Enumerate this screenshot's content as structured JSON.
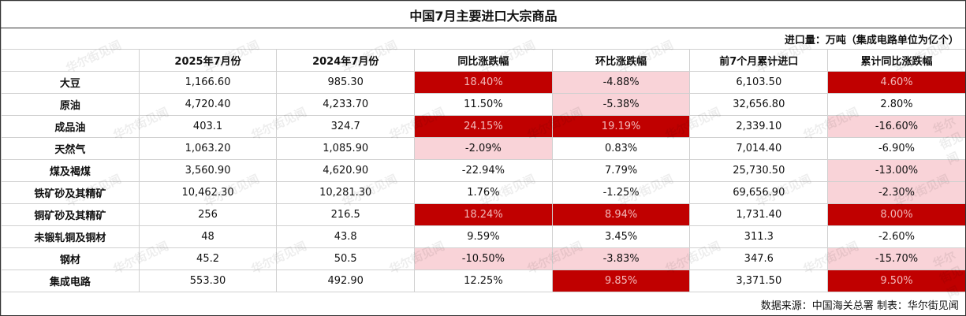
{
  "title": "中国7月主要进口大宗商品",
  "unit_note": "进口量：万吨（集成电路单位为亿个）",
  "headers": [
    "",
    "2025年7月份",
    "2024年7月份",
    "同比涨跌幅",
    "环比涨跌幅",
    "前7个月累计进口",
    "累计同比涨跌幅"
  ],
  "shade_colors": {
    "dark": {
      "background": "#c00000",
      "text": "#f2b8b8"
    },
    "light": {
      "background": "#f9d3d8",
      "text": "#111111"
    }
  },
  "rows": [
    {
      "label": "大豆",
      "cells": [
        "1,166.60",
        "985.30",
        "18.40%",
        "-4.88%",
        "6,103.50",
        "4.60%"
      ],
      "shade": [
        null,
        null,
        "dark",
        "light",
        null,
        "dark"
      ]
    },
    {
      "label": "原油",
      "cells": [
        "4,720.40",
        "4,233.70",
        "11.50%",
        "-5.38%",
        "32,656.80",
        "2.80%"
      ],
      "shade": [
        null,
        null,
        null,
        "light",
        null,
        null
      ]
    },
    {
      "label": "成品油",
      "cells": [
        "403.1",
        "324.7",
        "24.15%",
        "19.19%",
        "2,339.10",
        "-16.60%"
      ],
      "shade": [
        null,
        null,
        "dark",
        "dark",
        null,
        "light"
      ]
    },
    {
      "label": "天然气",
      "cells": [
        "1,063.20",
        "1,085.90",
        "-2.09%",
        "0.83%",
        "7,014.40",
        "-6.90%"
      ],
      "shade": [
        null,
        null,
        "light",
        null,
        null,
        null
      ]
    },
    {
      "label": "煤及褐煤",
      "cells": [
        "3,560.90",
        "4,620.90",
        "-22.94%",
        "7.79%",
        "25,730.50",
        "-13.00%"
      ],
      "shade": [
        null,
        null,
        null,
        null,
        null,
        "light"
      ]
    },
    {
      "label": "铁矿砂及其精矿",
      "cells": [
        "10,462.30",
        "10,281.30",
        "1.76%",
        "-1.25%",
        "69,656.90",
        "-2.30%"
      ],
      "shade": [
        null,
        null,
        null,
        null,
        null,
        "light"
      ]
    },
    {
      "label": "铜矿砂及其精矿",
      "cells": [
        "256",
        "216.5",
        "18.24%",
        "8.94%",
        "1,731.40",
        "8.00%"
      ],
      "shade": [
        null,
        null,
        "dark",
        "dark",
        null,
        "dark"
      ]
    },
    {
      "label": "未锻轧铜及铜材",
      "cells": [
        "48",
        "43.8",
        "9.59%",
        "3.45%",
        "311.3",
        "-2.60%"
      ],
      "shade": [
        null,
        null,
        null,
        null,
        null,
        null
      ]
    },
    {
      "label": "钢材",
      "cells": [
        "45.2",
        "50.5",
        "-10.50%",
        "-3.83%",
        "347.6",
        "-15.70%"
      ],
      "shade": [
        null,
        null,
        "light",
        "light",
        null,
        "light"
      ]
    },
    {
      "label": "集成电路",
      "cells": [
        "553.30",
        "492.90",
        "12.25%",
        "9.85%",
        "3,371.50",
        "9.50%"
      ],
      "shade": [
        null,
        null,
        null,
        "dark",
        null,
        "dark"
      ]
    }
  ],
  "footer": "数据来源：中国海关总署 制表：华尔街见闻",
  "watermark": "华尔街见闻"
}
